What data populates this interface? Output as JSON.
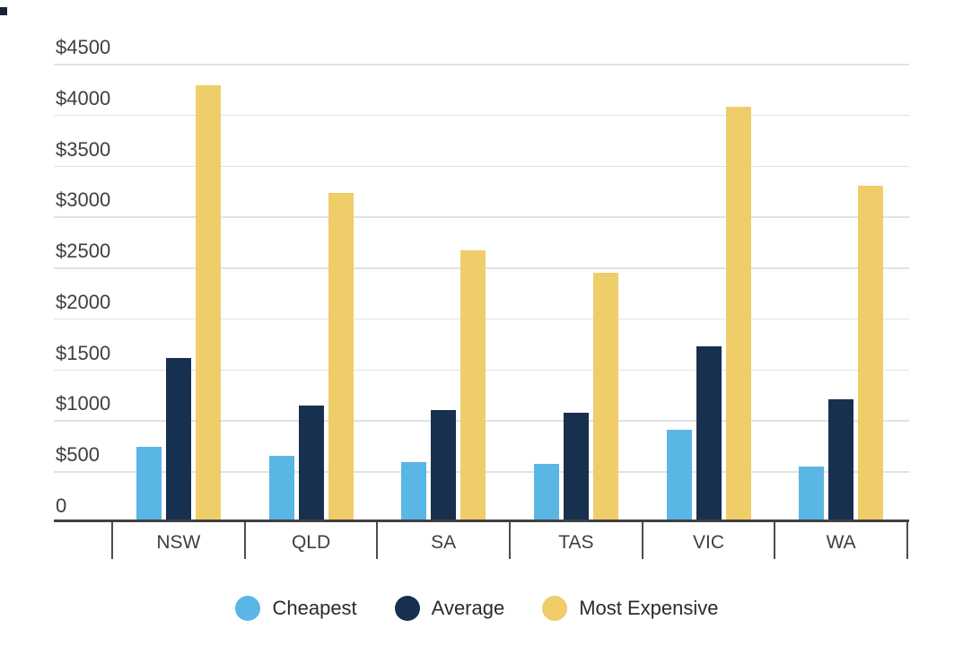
{
  "chart_data": {
    "type": "bar",
    "title": "",
    "xlabel": "",
    "ylabel": "",
    "categories": [
      "NSW",
      "QLD",
      "SA",
      "TAS",
      "VIC",
      "WA"
    ],
    "series": [
      {
        "name": "Cheapest",
        "color": "#5AB6E5",
        "values": [
          740,
          650,
          590,
          570,
          905,
          545
        ]
      },
      {
        "name": "Average",
        "color": "#18304F",
        "values": [
          1610,
          1145,
          1100,
          1075,
          1725,
          1205
        ]
      },
      {
        "name": "Most Expensive",
        "color": "#EFCD69",
        "values": [
          4290,
          3230,
          2670,
          2450,
          4075,
          3300
        ]
      }
    ],
    "ylim": [
      0,
      4500
    ],
    "y_ticks": [
      {
        "label": "$4500",
        "value": 4500
      },
      {
        "label": "$4000",
        "value": 4000
      },
      {
        "label": "$3500",
        "value": 3500
      },
      {
        "label": "$3000",
        "value": 3000
      },
      {
        "label": "$2500",
        "value": 2500
      },
      {
        "label": "$2000",
        "value": 2000
      },
      {
        "label": "$1500",
        "value": 1500
      },
      {
        "label": "$1000",
        "value": 1000
      },
      {
        "label": "$500",
        "value": 500
      },
      {
        "label": "0",
        "value": 0
      }
    ],
    "grid": true,
    "legend_position": "bottom",
    "colors": {
      "gridline": "#E0E2E3",
      "axis_line": "#404040",
      "category_separator": "#4D4D4D",
      "tick_label": "#3D4043",
      "category_label": "#3D4043",
      "legend_text": "#2B2B2B",
      "corner_mark": "#1A2433",
      "background": "#FFFFFF"
    }
  }
}
